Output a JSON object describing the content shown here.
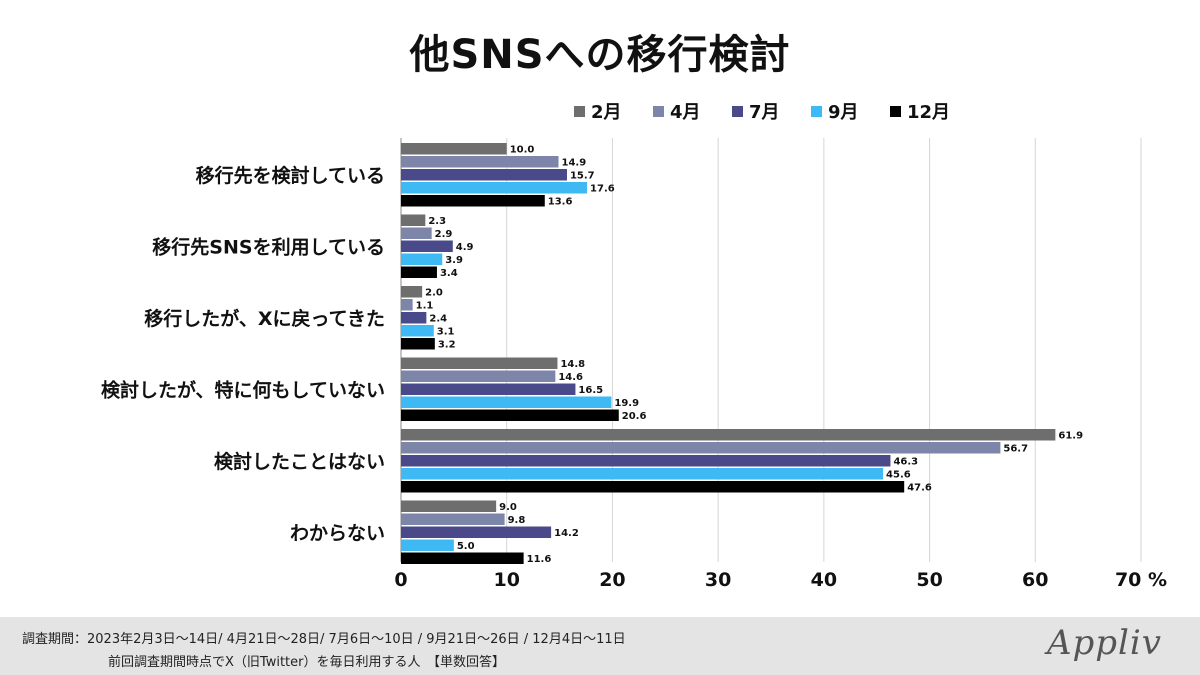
{
  "logo": "Appliv",
  "footer": {
    "note1": "調査期間：2023年2月3日〜14日/  4月21日〜28日/ 7月6日〜10日 / 9月21日〜26日 / 12月4日〜11日",
    "note2": "前回調査期間時点でX（旧Twitter）を毎日利用する人　【単数回答】"
  },
  "colors": {
    "series": [
      "#6e6e6e",
      "#7d86a8",
      "#4a4a8a",
      "#3fb9f4",
      "#000000"
    ],
    "grid": "#d6d6d6",
    "axis": "#888888"
  },
  "chart_data": {
    "type": "bar",
    "orientation": "horizontal",
    "title": "他SNSへの移行検討",
    "xlabel": "",
    "ylabel": "",
    "xlim": [
      0,
      70
    ],
    "x_ticks": [
      "0",
      "10",
      "20",
      "30",
      "40",
      "50",
      "60",
      "70 %"
    ],
    "grid": true,
    "legend_position": "top-right",
    "categories": [
      "移行先を検討している",
      "移行先SNSを利用している",
      "移行したが、Xに戻ってきた",
      "検討したが、特に何もしていない",
      "検討したことはない",
      "わからない"
    ],
    "series": [
      {
        "name": "2月",
        "values": [
          10.0,
          2.3,
          2.0,
          14.8,
          61.9,
          9.0
        ]
      },
      {
        "name": "4月",
        "values": [
          14.9,
          2.9,
          1.1,
          14.6,
          56.7,
          9.8
        ]
      },
      {
        "name": "7月",
        "values": [
          15.7,
          4.9,
          2.4,
          16.5,
          46.3,
          14.2
        ]
      },
      {
        "name": "9月",
        "values": [
          17.6,
          3.9,
          3.1,
          19.9,
          45.6,
          5.0
        ]
      },
      {
        "name": "12月",
        "values": [
          13.6,
          3.4,
          3.2,
          20.6,
          47.6,
          11.6
        ]
      }
    ]
  }
}
